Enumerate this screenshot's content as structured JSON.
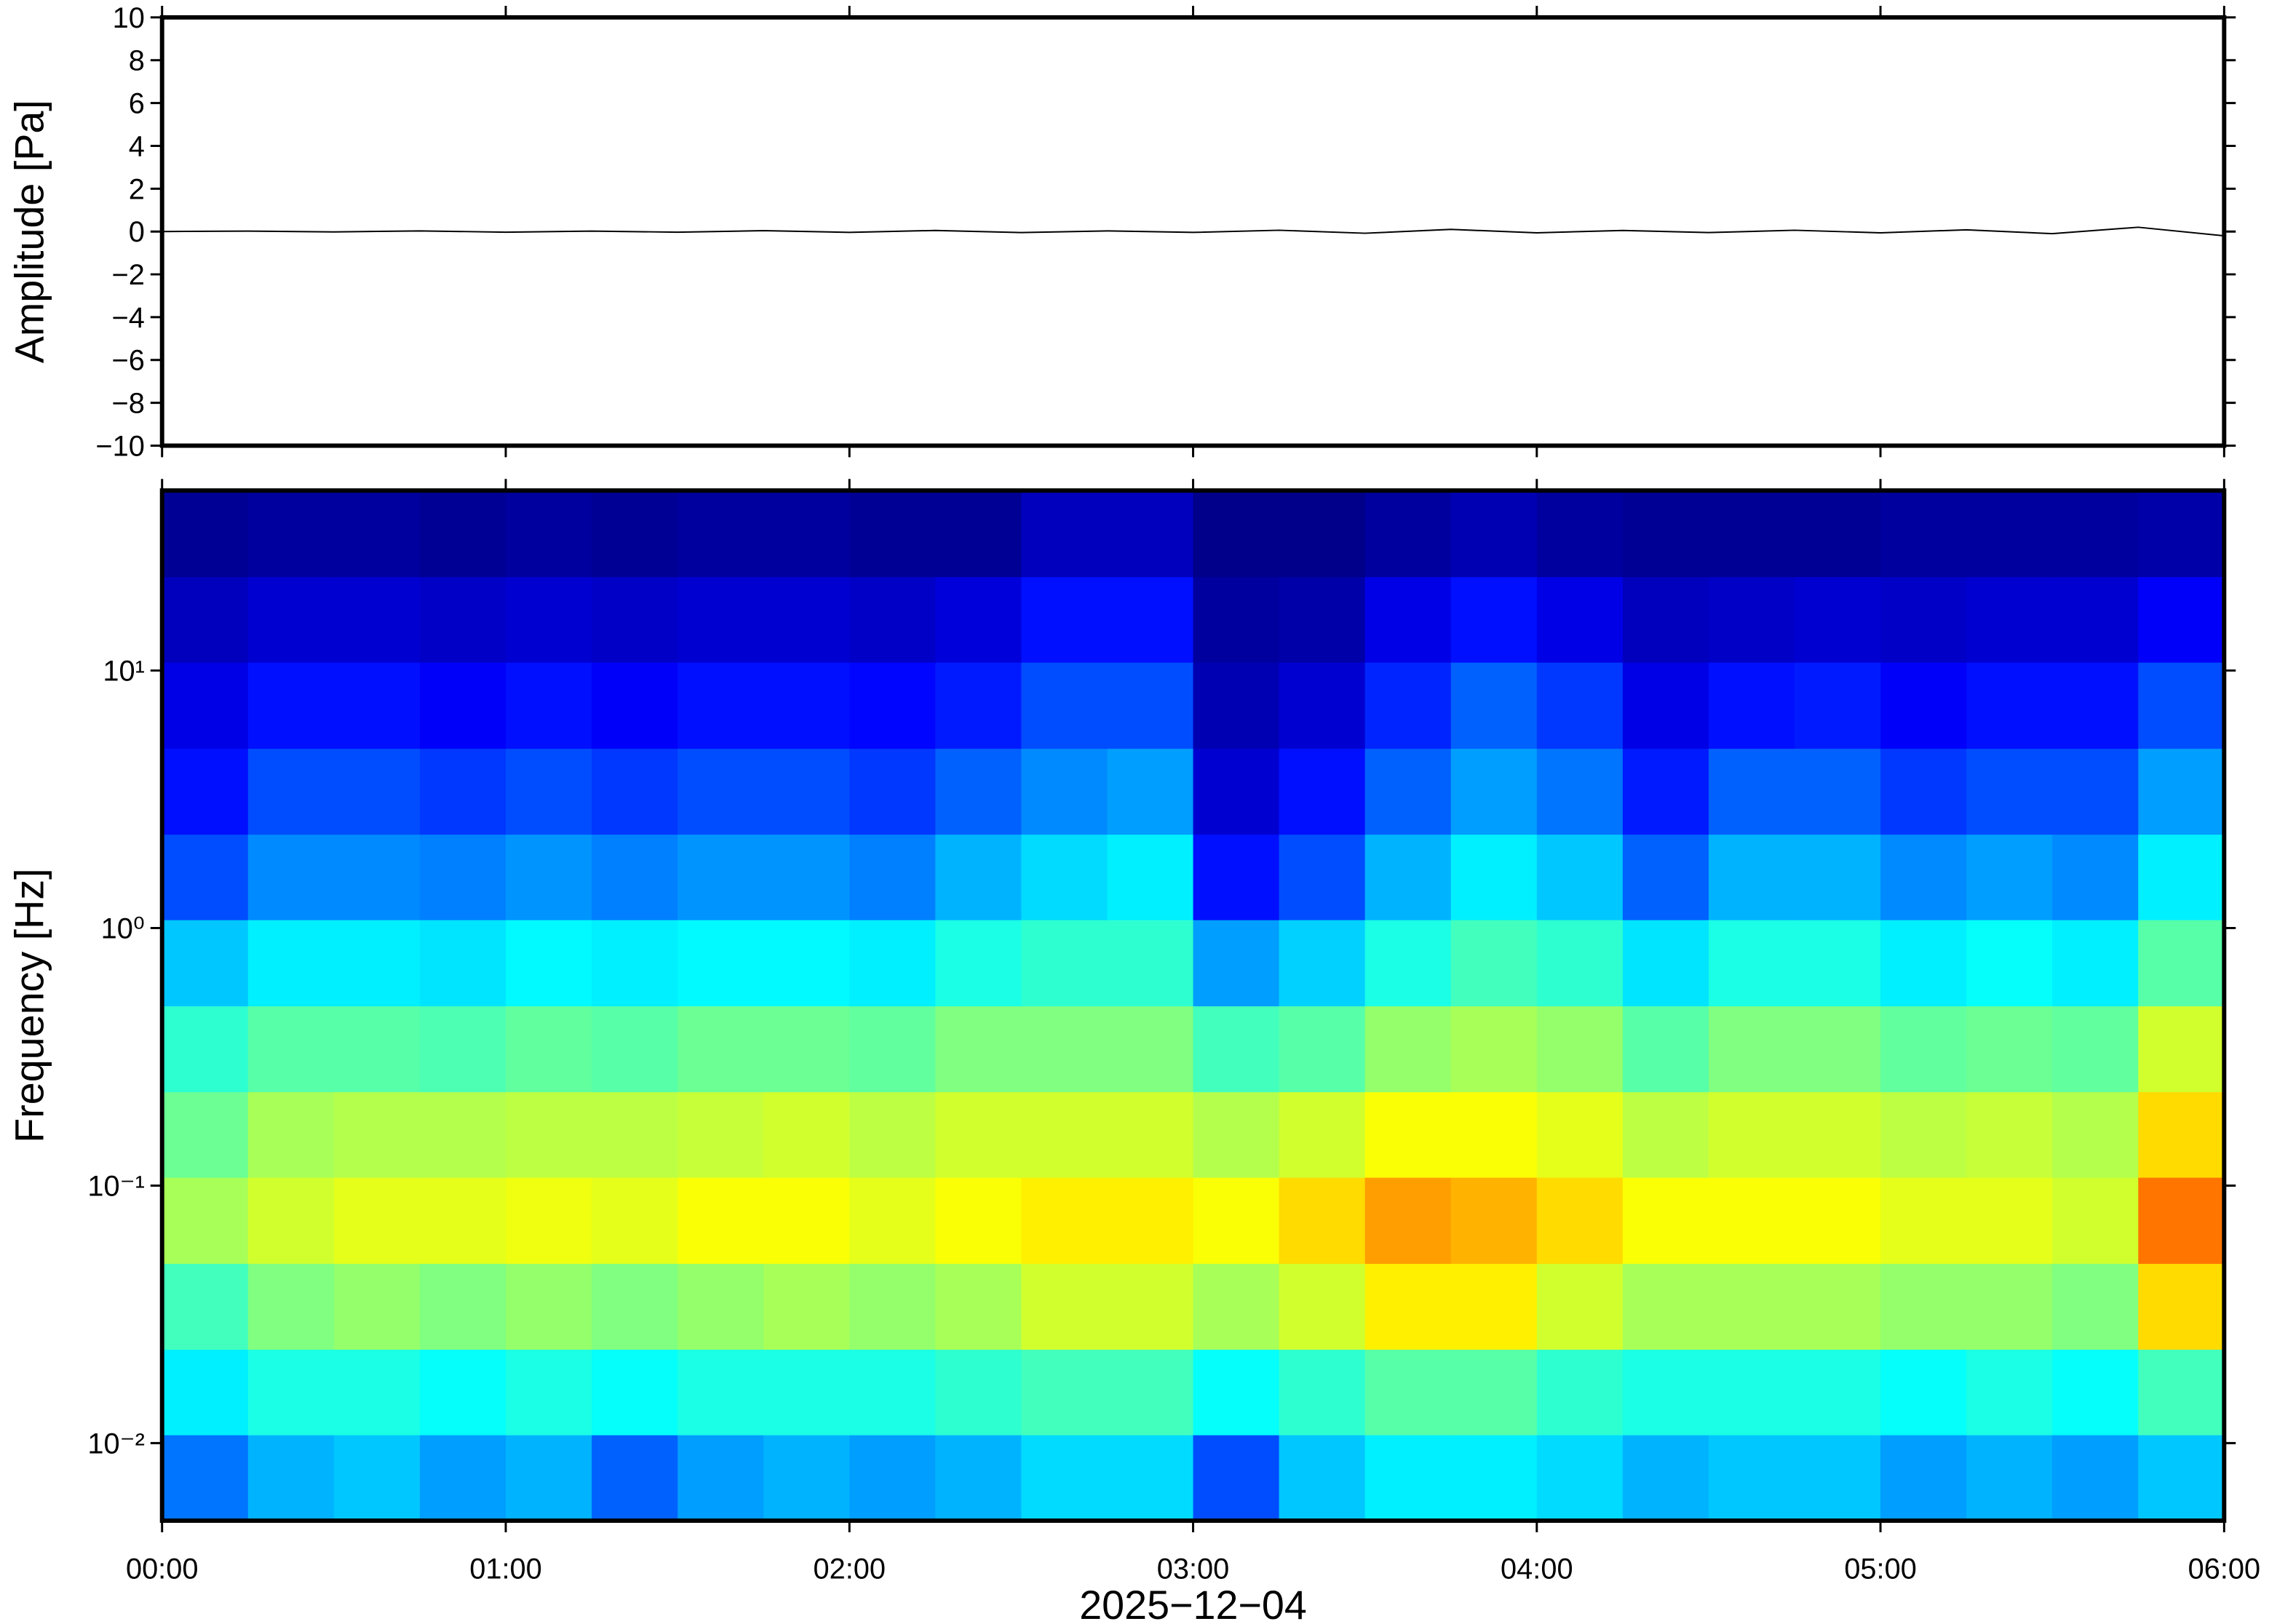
{
  "chart_data": [
    {
      "type": "line",
      "ylabel": "Amplitude [Pa]",
      "xlim": [
        0,
        360
      ],
      "xticks": [
        0,
        60,
        120,
        180,
        240,
        300,
        360
      ],
      "ylim": [
        -10,
        10
      ],
      "yticks": [
        {
          "value": -10,
          "label": "−10"
        },
        {
          "value": -8,
          "label": "−8"
        },
        {
          "value": -6,
          "label": "−6"
        },
        {
          "value": -4,
          "label": "−4"
        },
        {
          "value": -2,
          "label": "−2"
        },
        0,
        2,
        4,
        6,
        8,
        10
      ],
      "series": [
        {
          "color": "#000000",
          "x": [
            0,
            15,
            30,
            45,
            60,
            75,
            90,
            105,
            120,
            135,
            150,
            165,
            180,
            195,
            210,
            225,
            240,
            255,
            270,
            285,
            300,
            315,
            330,
            345,
            360
          ],
          "values": [
            0,
            0.02,
            -0.02,
            0.03,
            -0.03,
            0.02,
            -0.03,
            0.04,
            -0.04,
            0.05,
            -0.05,
            0.03,
            -0.04,
            0.06,
            -0.08,
            0.1,
            -0.06,
            0.05,
            -0.05,
            0.06,
            -0.06,
            0.08,
            -0.1,
            0.2,
            -0.2
          ]
        }
      ]
    },
    {
      "type": "heatmap",
      "ylabel": "Frequency [Hz]",
      "xlabel": "2025−12−04",
      "xlim": [
        0,
        360
      ],
      "xticks": [
        {
          "value": 0,
          "label": "00:00"
        },
        {
          "value": 60,
          "label": "01:00"
        },
        {
          "value": 120,
          "label": "02:00"
        },
        {
          "value": 180,
          "label": "03:00"
        },
        {
          "value": 240,
          "label": "04:00"
        },
        {
          "value": 300,
          "label": "05:00"
        },
        {
          "value": 360,
          "label": "06:00"
        }
      ],
      "ylim": [
        0.005,
        50
      ],
      "log_y": true,
      "yticks": [
        {
          "value": 0.01,
          "label": "10⁻²"
        },
        {
          "value": 0.1,
          "label": "10⁻¹"
        },
        {
          "value": 1,
          "label": "10⁰"
        },
        {
          "value": 10,
          "label": "10¹"
        }
      ],
      "colormap": "jet",
      "zlim": [
        0,
        100
      ],
      "xbins": [
        0,
        15,
        30,
        45,
        60,
        75,
        90,
        105,
        120,
        135,
        150,
        165,
        180,
        195,
        210,
        225,
        240,
        255,
        270,
        285,
        300,
        315,
        330,
        345,
        360
      ],
      "ybins": [
        0.005,
        0.0108,
        0.0232,
        0.05,
        0.108,
        0.232,
        0.5,
        1.08,
        2.32,
        5,
        10.8,
        23.2,
        50
      ],
      "z": [
        [
          24,
          30,
          32,
          28,
          30,
          22,
          28,
          30,
          28,
          30,
          34,
          34,
          20,
          32,
          36,
          36,
          34,
          30,
          32,
          32,
          28,
          30,
          28,
          32
        ],
        [
          36,
          40,
          40,
          38,
          40,
          38,
          40,
          40,
          40,
          42,
          44,
          44,
          38,
          42,
          46,
          46,
          42,
          40,
          40,
          40,
          38,
          40,
          38,
          44
        ],
        [
          44,
          50,
          52,
          50,
          52,
          50,
          52,
          54,
          52,
          54,
          58,
          58,
          54,
          58,
          64,
          64,
          58,
          54,
          54,
          54,
          52,
          52,
          50,
          66
        ],
        [
          54,
          58,
          60,
          60,
          61,
          60,
          62,
          62,
          60,
          62,
          64,
          64,
          62,
          66,
          72,
          70,
          66,
          62,
          62,
          62,
          60,
          60,
          58,
          76
        ],
        [
          48,
          54,
          55,
          55,
          56,
          56,
          57,
          58,
          56,
          58,
          58,
          58,
          55,
          58,
          62,
          62,
          60,
          56,
          58,
          58,
          56,
          57,
          55,
          66
        ],
        [
          42,
          46,
          46,
          45,
          47,
          46,
          48,
          48,
          47,
          50,
          50,
          50,
          44,
          46,
          52,
          54,
          52,
          46,
          50,
          50,
          47,
          48,
          47,
          58
        ],
        [
          32,
          36,
          36,
          35,
          37,
          36,
          37,
          37,
          36,
          40,
          42,
          42,
          28,
          33,
          40,
          44,
          42,
          35,
          40,
          40,
          36,
          38,
          36,
          46
        ],
        [
          20,
          26,
          26,
          25,
          27,
          25,
          27,
          27,
          25,
          30,
          34,
          36,
          14,
          20,
          30,
          36,
          32,
          22,
          30,
          30,
          26,
          28,
          26,
          36
        ],
        [
          14,
          20,
          20,
          18,
          20,
          18,
          20,
          20,
          18,
          22,
          26,
          28,
          8,
          14,
          22,
          28,
          24,
          15,
          22,
          22,
          18,
          20,
          20,
          28
        ],
        [
          10,
          14,
          14,
          12,
          14,
          12,
          14,
          14,
          13,
          15,
          20,
          20,
          5,
          8,
          16,
          22,
          18,
          10,
          14,
          15,
          12,
          14,
          14,
          20
        ],
        [
          6,
          8,
          8,
          7,
          8,
          7,
          8,
          8,
          7,
          9,
          14,
          14,
          3,
          4,
          10,
          14,
          10,
          6,
          7,
          8,
          7,
          8,
          8,
          12
        ],
        [
          2,
          3,
          3,
          2,
          3,
          2,
          3,
          3,
          2,
          2,
          6,
          6,
          1,
          1,
          3,
          5,
          3,
          2,
          2,
          2,
          3,
          3,
          3,
          4
        ]
      ]
    }
  ]
}
